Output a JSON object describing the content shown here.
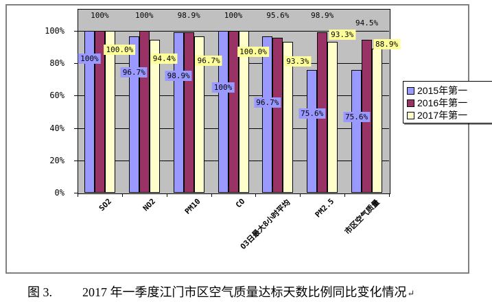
{
  "chart_data": {
    "type": "bar",
    "title": "",
    "categories": [
      "SO2",
      "NO2",
      "PM10",
      "CO",
      "O3日最大8小时平均",
      "PM2.5",
      "市区空气质量"
    ],
    "series": [
      {
        "name": "2015年第一",
        "color": "#9999FF",
        "label_bg": "#9999FF",
        "values": [
          100,
          96.7,
          98.9,
          100,
          96.7,
          75.6,
          75.6
        ],
        "labels": [
          "100%",
          "96.7%",
          "98.9%",
          "100%",
          "96.7%",
          "75.6%",
          "75.6%"
        ],
        "label_y": [
          83,
          74.5,
          72.4,
          64.8,
          55.5,
          49.1,
          47
        ],
        "label_dx": 0
      },
      {
        "name": "2016年第一",
        "color": "#993366",
        "label_bg": "",
        "values": [
          100,
          100,
          98.9,
          100,
          95.6,
          98.9,
          94.5
        ],
        "labels": [
          "100%",
          "100%",
          "98.9%",
          "100%",
          "95.6%",
          "98.9%",
          "94.5%"
        ],
        "label_y": [
          109.5,
          109.5,
          109.5,
          109.5,
          109.5,
          109.5,
          105
        ],
        "label_dx": 0
      },
      {
        "name": "2017年第一",
        "color": "#FFFFCC",
        "label_bg": "#FFFF99",
        "values": [
          100,
          94.4,
          96.7,
          100,
          93.3,
          93.3,
          88.9
        ],
        "labels": [
          "100.0%",
          "94.4%",
          "96.7%",
          "100.0%",
          "93.3%",
          "93.3%",
          "88.9%"
        ],
        "label_y": [
          88.5,
          83,
          81.7,
          87.2,
          80.9,
          97.8,
          91.9
        ],
        "label_dx": 14
      }
    ],
    "xlabel": "",
    "ylabel": "",
    "y_ticks": [
      {
        "value": 0,
        "label": "0%"
      },
      {
        "value": 20,
        "label": "20%"
      },
      {
        "value": 40,
        "label": "40%"
      },
      {
        "value": 60,
        "label": "60%"
      },
      {
        "value": 80,
        "label": "80%"
      },
      {
        "value": 100,
        "label": "100%"
      }
    ],
    "ylim": [
      0,
      113.5
    ],
    "grid": "horizontal major every 20%",
    "plot_background": "#C0C0C0",
    "legend_position": "right",
    "legend_labels_visible": [
      "2015年第一",
      "2016年第一",
      "2017年第一"
    ]
  },
  "caption": {
    "figure_label": "图 3.",
    "text": "2017 年一季度江门市区空气质量达标天数比例同比变化情况",
    "paragraph_mark": "↵"
  }
}
